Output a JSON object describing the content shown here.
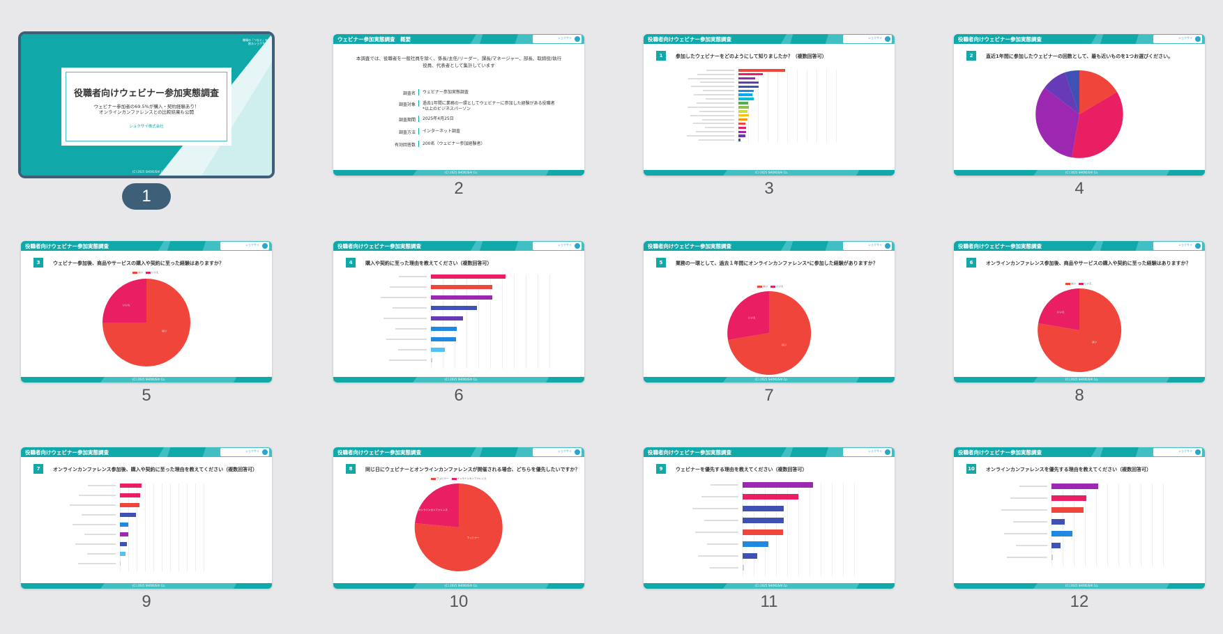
{
  "header_title": "役職者向けウェビナー参加実態調査",
  "logo_text": "ショクサイ",
  "footer_copy": "(C) 2025 SHOKUSAI Co.",
  "slides": [
    {
      "number": "1",
      "title": "役職者向けウェビナー参加実態調査",
      "subtitle_line1": "ウェビナー参加者の69.5%が購入・契約経験あり！",
      "subtitle_line2": "オンラインカンファレンスとの比較結果も公開",
      "company": "ショクサイ株式会社",
      "logo_line1": "職場の「つなぐ」を",
      "logo_line2": "創るショクサイ"
    },
    {
      "number": "2",
      "header": "ウェビナー参加実態調査　概要",
      "intro": "本調査では、役職者を一般社員を除く、係長/主任/リーダー、課長/マネージャー、部長、取締役/執行役員、代表者として集計しています",
      "rows": [
        {
          "k": "調査名",
          "v": "ウェビナー参加実態調査"
        },
        {
          "k": "調査対象",
          "v": "過去1年間に業務の一環としてウェビナーに参加した経験がある役職者*以上のビジネスパーソン"
        },
        {
          "k": "調査期間",
          "v": "2025年4月25日"
        },
        {
          "k": "調査方法",
          "v": "インターネット調査"
        },
        {
          "k": "有効回答数",
          "v": "200名（ウェビナー参加経験者）"
        }
      ]
    },
    {
      "number": "3",
      "q": "1",
      "question": "参加したウェビナーをどのようにして知りましたか？（複数回答可）"
    },
    {
      "number": "4",
      "q": "2",
      "question": "直近1年間に参加したウェビナーの回数として、最も近いものを1つお選びください。"
    },
    {
      "number": "5",
      "q": "3",
      "question": "ウェビナー参加後、商品やサービスの購入や契約に至った経験はありますか？"
    },
    {
      "number": "6",
      "q": "4",
      "question": "購入や契約に至った理由を教えてください（複数回答可）"
    },
    {
      "number": "7",
      "q": "5",
      "question": "業務の一環として、過去１年間にオンラインカンファレンス*に参加した経験がありますか？"
    },
    {
      "number": "8",
      "q": "6",
      "question": "オンラインカンファレンス参加後、商品やサービスの購入や契約に至った経験はありますか？"
    },
    {
      "number": "9",
      "q": "7",
      "question": "オンラインカンファレンス参加後、購入や契約に至った理由を教えてください（複数回答可）"
    },
    {
      "number": "10",
      "q": "8",
      "question": "同じ日にウェビナーとオンラインカンファレンスが開催される場合、どちらを優先したいですか？"
    },
    {
      "number": "11",
      "q": "9",
      "question": "ウェビナーを優先する理由を教えてください（複数回答可）"
    },
    {
      "number": "12",
      "q": "10",
      "question": "オンラインカンファレンスを優先する理由を教えてください（複数回答可）"
    }
  ],
  "legends": {
    "yes_no": [
      "はい",
      "いいえ"
    ],
    "webinar_conf": [
      "ウェビナー",
      "オンラインカンファレンス"
    ]
  },
  "pie_labels": {
    "s5": [
      "はい",
      "いいえ"
    ],
    "s7": [
      "はい",
      "いいえ"
    ],
    "s8": [
      "はい",
      "いいえ"
    ],
    "s10": [
      "ウェビナー",
      "オンラインカンファレンス"
    ]
  },
  "colors": {
    "teal": "#11a8a9",
    "red": "#f0453a",
    "pink": "#e91e63",
    "purple": "#9c27b0",
    "indigo": "#3f51b5",
    "blue": "#1e88e5",
    "selected": "#3d5f78"
  }
}
